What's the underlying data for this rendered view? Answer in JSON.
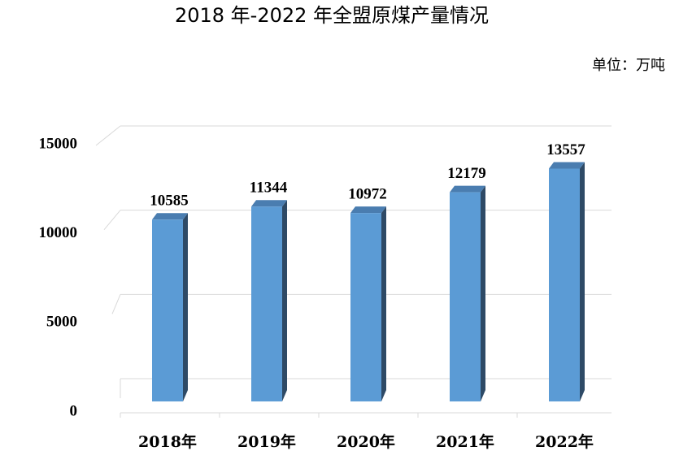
{
  "chart_data": {
    "type": "bar3d",
    "title": "2018 年-2022 年全盟原煤产量情况",
    "subtitle": "单位：万吨",
    "categories": [
      "2018年",
      "2019年",
      "2020年",
      "2021年",
      "2022年"
    ],
    "values": [
      10585,
      11344,
      10972,
      12179,
      13557
    ],
    "color": "#5b9bd5",
    "ylim": [
      0,
      15000
    ],
    "yticks": [
      0,
      5000,
      10000,
      15000
    ],
    "grid": true
  }
}
